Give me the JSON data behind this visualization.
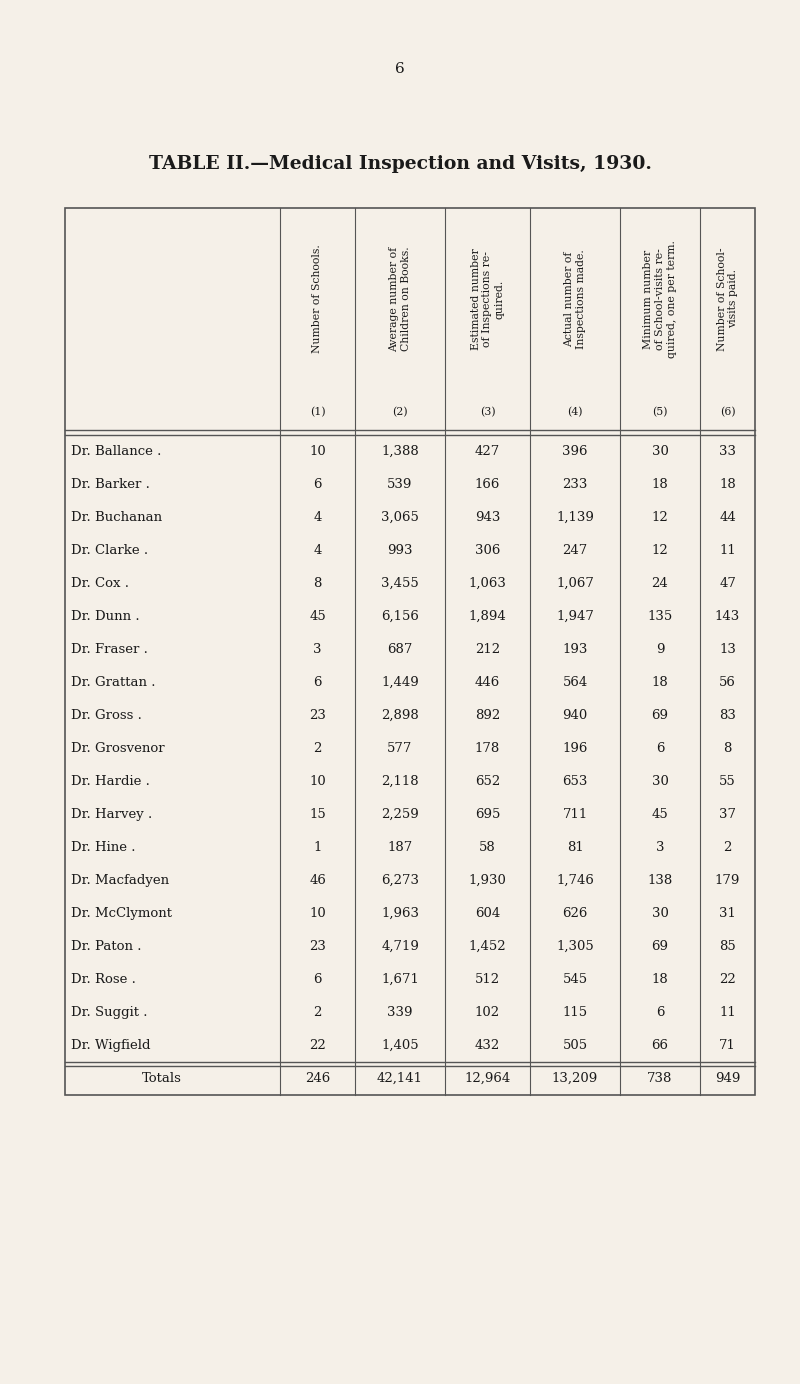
{
  "page_number": "6",
  "title": "TABLE II.—Medical Inspection and Visits, 1930.",
  "background_color": "#f5f0e8",
  "col_headers_rotated": [
    "Number of Schools.",
    "Average number of\nChildren on Books.",
    "Estimated number\nof Inspections re-\nquired.",
    "Actual number of\nInspections made.",
    "Minimum number\nof School-visits re-\nquired, one per term.",
    "Number of School-\nvisits paid."
  ],
  "col_numbers": [
    "(1)",
    "(2)",
    "(3)",
    "(4)",
    "(5)",
    "(6)"
  ],
  "rows": [
    [
      "Dr. Ballance .",
      ".",
      10,
      "1,388",
      427,
      396,
      30,
      33
    ],
    [
      "Dr. Barker .",
      ".",
      6,
      "539",
      166,
      233,
      18,
      18
    ],
    [
      "Dr. Buchanan",
      ".",
      4,
      "3,065",
      943,
      "1,139",
      12,
      44
    ],
    [
      "Dr. Clarke .",
      ".",
      4,
      "993",
      306,
      247,
      12,
      11
    ],
    [
      "Dr. Cox .",
      ".",
      8,
      "3,455",
      "1,063",
      "1,067",
      24,
      47
    ],
    [
      "Dr. Dunn .",
      ".",
      45,
      "6,156",
      "1,894",
      "1,947",
      135,
      143
    ],
    [
      "Dr. Fraser .",
      ".",
      3,
      "687",
      212,
      193,
      9,
      13
    ],
    [
      "Dr. Grattan .",
      ".",
      6,
      "1,449",
      446,
      564,
      18,
      56
    ],
    [
      "Dr. Gross .",
      ".",
      23,
      "2,898",
      892,
      940,
      69,
      83
    ],
    [
      "Dr. Grosvenor",
      ".",
      2,
      "577",
      178,
      196,
      6,
      8
    ],
    [
      "Dr. Hardie .",
      ".",
      10,
      "2,118",
      652,
      653,
      30,
      55
    ],
    [
      "Dr. Harvey .",
      ".",
      15,
      "2,259",
      695,
      711,
      45,
      37
    ],
    [
      "Dr. Hine .",
      ".",
      1,
      "187",
      58,
      81,
      3,
      2
    ],
    [
      "Dr. Macfadyen",
      ".",
      46,
      "6,273",
      "1,930",
      "1,746",
      138,
      179
    ],
    [
      "Dr. McClymont",
      ".",
      10,
      "1,963",
      604,
      626,
      30,
      31
    ],
    [
      "Dr. Paton .",
      ".",
      23,
      "4,719",
      "1,452",
      "1,305",
      69,
      85
    ],
    [
      "Dr. Rose .",
      ".",
      6,
      "1,671",
      512,
      545,
      18,
      22
    ],
    [
      "Dr. Suggit .",
      ".",
      2,
      "339",
      102,
      115,
      6,
      11
    ],
    [
      "Dr. Wigfield",
      ".",
      22,
      "1,405",
      432,
      505,
      66,
      71
    ]
  ],
  "totals_label": "Totals",
  "totals_dot": ".",
  "totals": [
    246,
    "42,141",
    "12,964",
    "13,209",
    738,
    949
  ],
  "text_color": "#1a1a1a",
  "line_color": "#555555",
  "header_font_size": 7.8,
  "body_font_size": 9.5,
  "title_font_size": 13.5,
  "page_num_font_size": 11
}
